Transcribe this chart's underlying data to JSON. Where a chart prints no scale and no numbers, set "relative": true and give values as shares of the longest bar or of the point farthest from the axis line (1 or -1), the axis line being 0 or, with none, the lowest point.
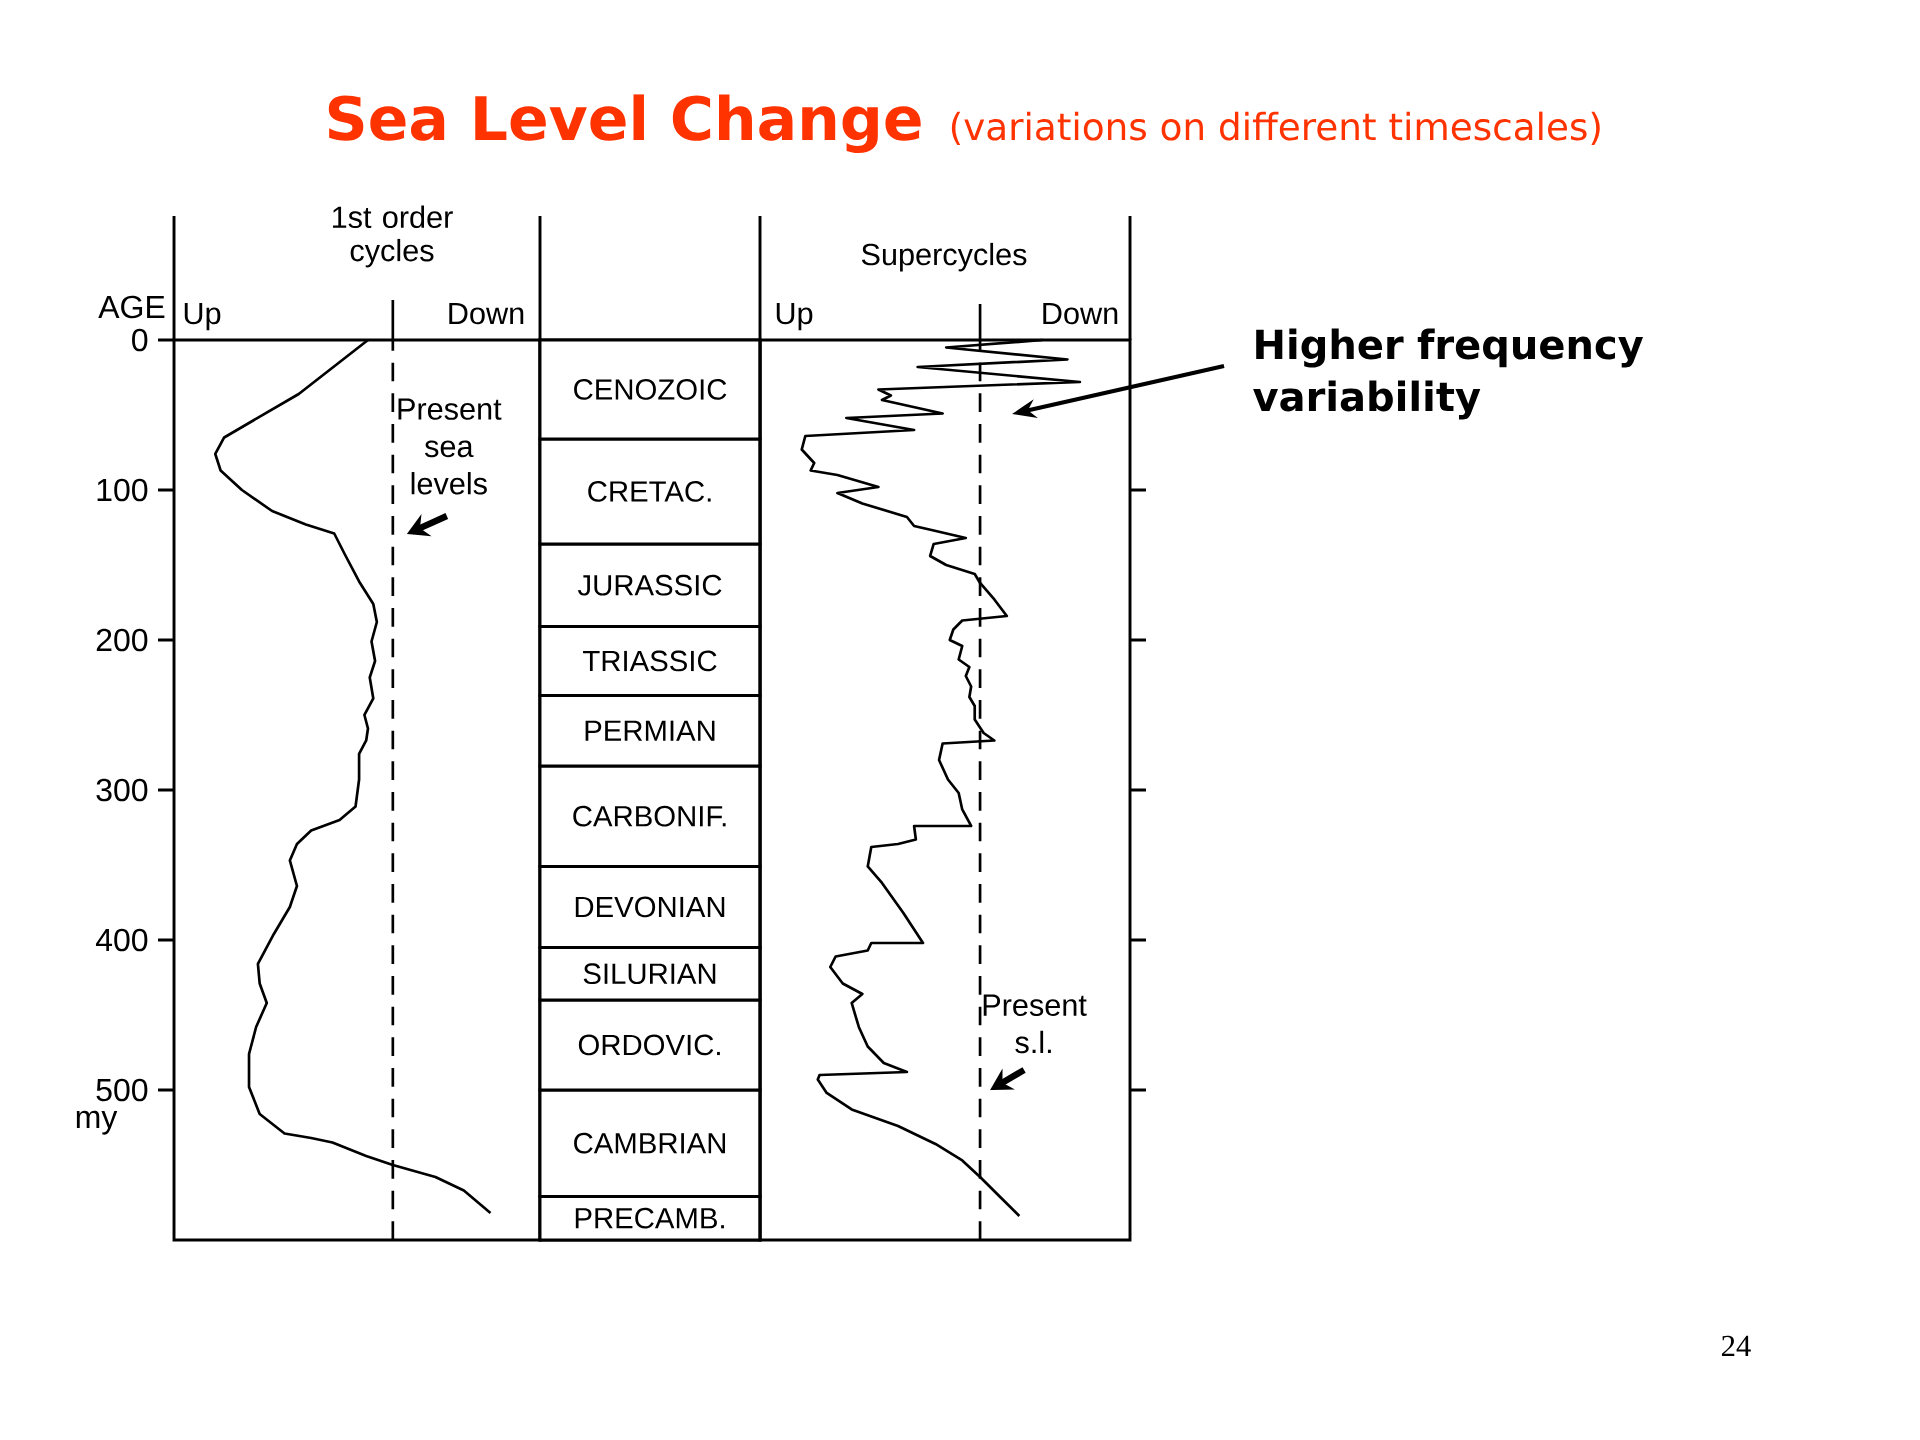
{
  "chart_data": [
    {
      "type": "other",
      "title": "Sea Level Change",
      "subtitle": "(variations on different timescales)",
      "annotations": [
        "24"
      ]
    },
    {
      "type": "line",
      "orientation": "horizontal",
      "title": "1st order cycles",
      "ylabel": "AGE",
      "relative": true,
      "ylim": [
        600,
        0
      ],
      "yticks": [
        0,
        100,
        200,
        300,
        400,
        500
      ],
      "color": "#000000",
      "x": [
        0,
        36,
        65,
        76,
        87,
        100,
        114,
        123,
        129,
        143,
        161,
        176,
        188,
        201,
        214,
        225,
        239,
        250,
        259,
        267,
        276,
        293,
        311,
        320,
        327,
        336,
        347,
        364,
        378,
        396,
        416,
        429,
        442,
        458,
        476,
        498,
        516,
        529,
        532,
        535,
        544,
        550,
        558,
        567,
        582
      ],
      "values": [
        -0.14,
        -0.53,
        -0.95,
        -1,
        -0.97,
        -0.85,
        -0.68,
        -0.49,
        -0.33,
        -0.27,
        -0.19,
        -0.11,
        -0.09,
        -0.12,
        -0.1,
        -0.13,
        -0.11,
        -0.16,
        -0.14,
        -0.15,
        -0.19,
        -0.19,
        -0.21,
        -0.3,
        -0.46,
        -0.54,
        -0.58,
        -0.54,
        -0.58,
        -0.67,
        -0.76,
        -0.75,
        -0.71,
        -0.77,
        -0.81,
        -0.81,
        -0.75,
        -0.61,
        -0.46,
        -0.34,
        -0.15,
        0,
        0.24,
        0.4,
        0.55
      ],
      "ref_lines": [
        {
          "axis": "x",
          "value": 0,
          "label": "Present sea levels",
          "line_style": "dashed",
          "color": "#000000"
        }
      ],
      "annotations": [
        "Up",
        "Down",
        "my"
      ]
    },
    {
      "type": "bar",
      "stacked": true,
      "categories": [
        null
      ],
      "ylim": [
        600,
        0
      ],
      "tick_labels": false,
      "series": [
        {
          "name": "CENOZOIC",
          "color": "#ffffff",
          "values": [
            66
          ]
        },
        {
          "name": "CRETAC.",
          "color": "#ffffff",
          "values": [
            70
          ]
        },
        {
          "name": "JURASSIC",
          "color": "#ffffff",
          "values": [
            55
          ]
        },
        {
          "name": "TRIASSIC",
          "color": "#ffffff",
          "values": [
            46
          ]
        },
        {
          "name": "PERMIAN",
          "color": "#ffffff",
          "values": [
            47
          ]
        },
        {
          "name": "CARBONIF.",
          "color": "#ffffff",
          "values": [
            67
          ]
        },
        {
          "name": "DEVONIAN",
          "color": "#ffffff",
          "values": [
            54
          ]
        },
        {
          "name": "SILURIAN",
          "color": "#ffffff",
          "values": [
            35
          ]
        },
        {
          "name": "ORDOVIC.",
          "color": "#ffffff",
          "values": [
            60
          ]
        },
        {
          "name": "CAMBRIAN",
          "color": "#ffffff",
          "values": [
            71
          ]
        },
        {
          "name": "PRECAMB.",
          "color": "#ffffff",
          "values": [
            29
          ]
        }
      ]
    },
    {
      "type": "line",
      "orientation": "horizontal",
      "title": "Supercycles",
      "relative": true,
      "ylim": [
        600,
        0
      ],
      "yticks": [
        100,
        200,
        300,
        400,
        500
      ],
      "tick_labels": false,
      "color": "#000000",
      "x": [
        0,
        5,
        13,
        18,
        28,
        33,
        37,
        40,
        49,
        52,
        60,
        64,
        73,
        82,
        87,
        90,
        98,
        102,
        109,
        118,
        124,
        127,
        132,
        136,
        144,
        150,
        156,
        162,
        173,
        184,
        187,
        193,
        200,
        204,
        213,
        218,
        224,
        231,
        238,
        244,
        253,
        262,
        267,
        269,
        280,
        293,
        302,
        313,
        324,
        324,
        333,
        336,
        338,
        351,
        362,
        382,
        402,
        402,
        407,
        411,
        418,
        429,
        436,
        442,
        458,
        471,
        482,
        488,
        490,
        493,
        502,
        513,
        524,
        536,
        547,
        558,
        571,
        584
      ],
      "values": [
        0.35,
        -0.19,
        0.49,
        -0.35,
        0.56,
        -0.57,
        -0.5,
        -0.55,
        -0.21,
        -0.75,
        -0.37,
        -0.98,
        -1,
        -0.93,
        -0.95,
        -0.8,
        -0.57,
        -0.8,
        -0.66,
        -0.41,
        -0.37,
        -0.26,
        -0.08,
        -0.26,
        -0.28,
        -0.19,
        -0.03,
        0,
        0.08,
        0.15,
        -0.1,
        -0.15,
        -0.17,
        -0.1,
        -0.12,
        -0.06,
        -0.08,
        -0.05,
        -0.06,
        -0.03,
        -0.03,
        0.02,
        0.08,
        -0.21,
        -0.23,
        -0.18,
        -0.12,
        -0.1,
        -0.05,
        -0.37,
        -0.36,
        -0.46,
        -0.61,
        -0.63,
        -0.55,
        -0.43,
        -0.32,
        -0.61,
        -0.63,
        -0.81,
        -0.84,
        -0.77,
        -0.66,
        -0.72,
        -0.68,
        -0.63,
        -0.54,
        -0.41,
        -0.9,
        -0.91,
        -0.86,
        -0.72,
        -0.46,
        -0.25,
        -0.1,
        0,
        0.11,
        0.22
      ],
      "ref_lines": [
        {
          "axis": "x",
          "value": 0,
          "label": "Present s.l.",
          "line_style": "dashed",
          "color": "#000000"
        }
      ],
      "annotations": [
        "Up",
        "Down",
        "Higher frequency variability"
      ]
    }
  ]
}
